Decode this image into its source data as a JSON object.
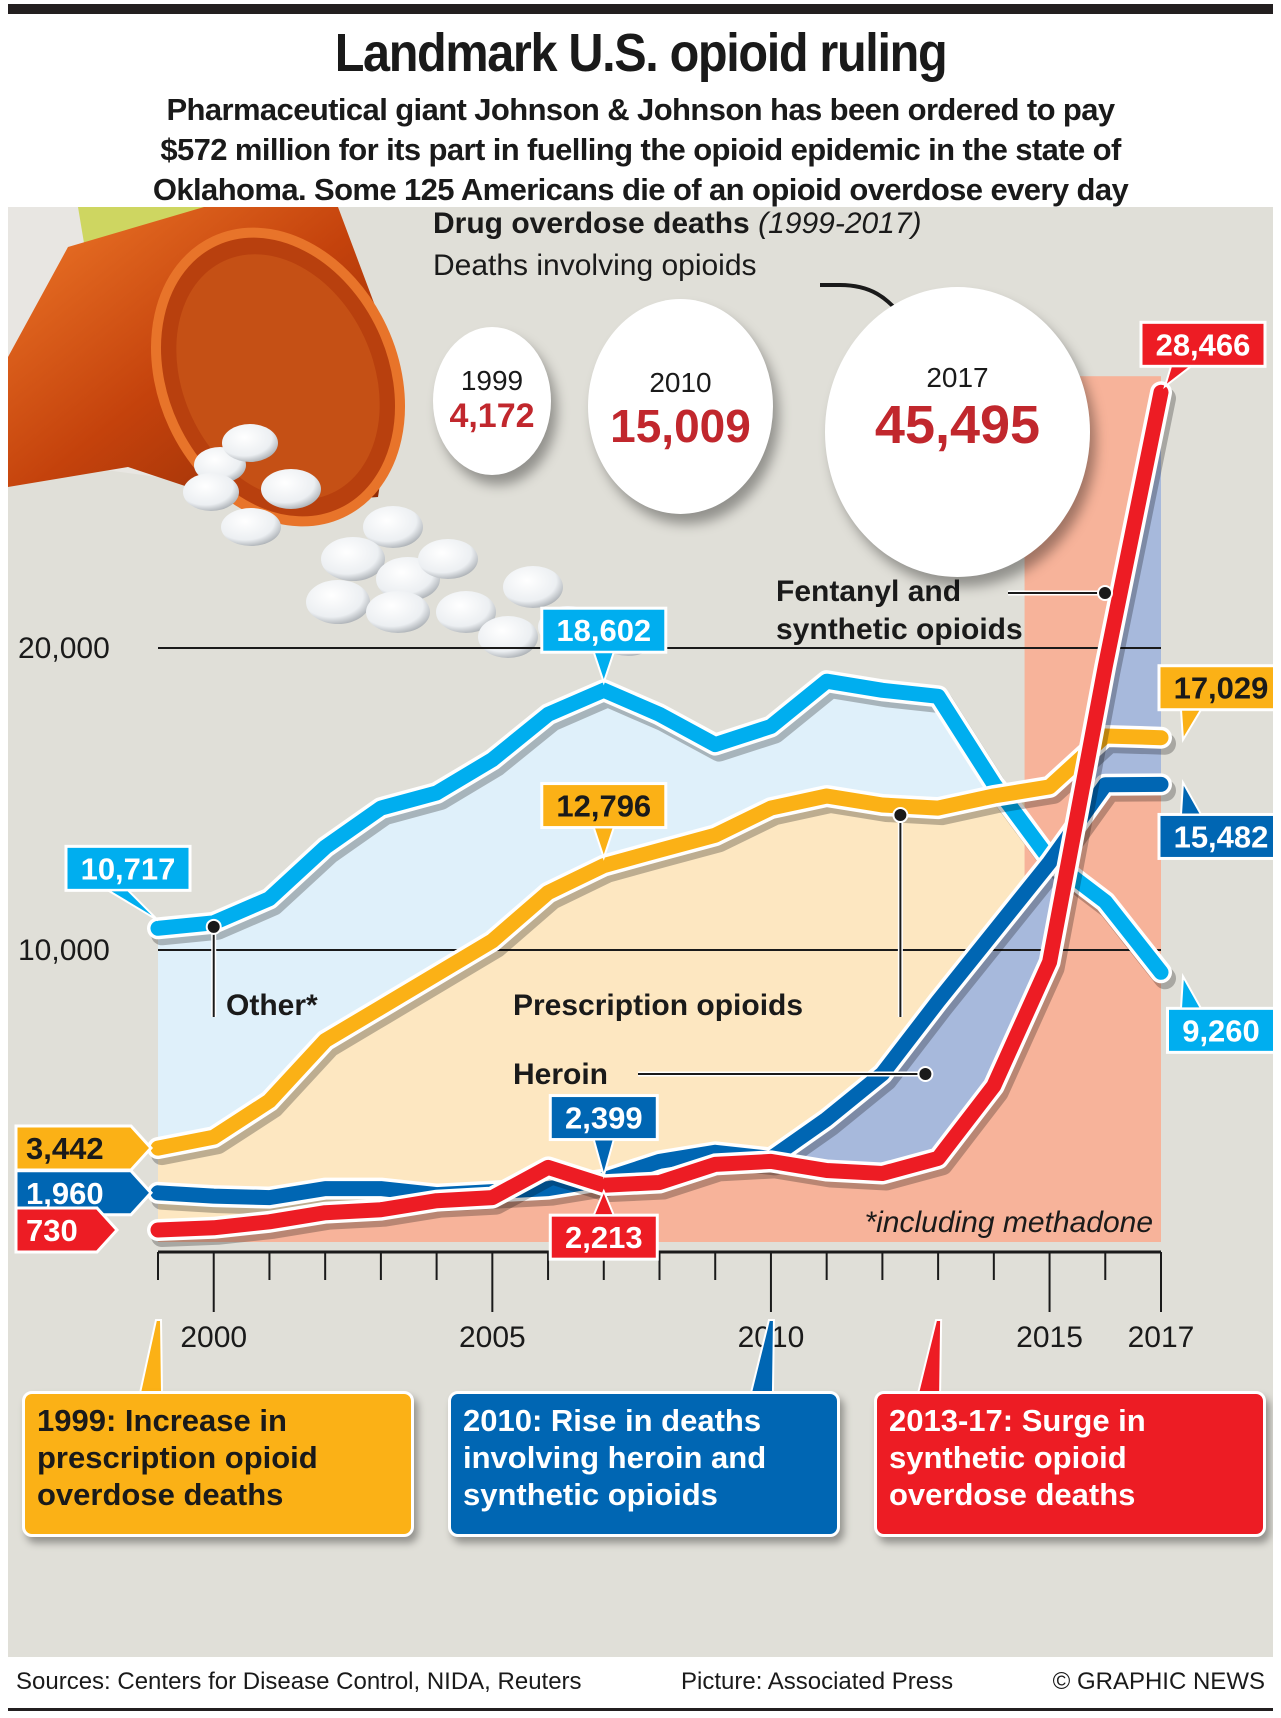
{
  "header": {
    "title": "Landmark U.S. opioid ruling",
    "subtitle_lines": [
      "Pharmaceutical giant Johnson & Johnson has been ordered to pay",
      "$572 million for its part in fuelling the opioid epidemic in the state of",
      "Oklahoma. Some 125 Americans die of an opioid overdose every day"
    ]
  },
  "summary": {
    "heading": "Drug overdose deaths",
    "heading_period": "(1999-2017)",
    "subheading": "Deaths involving opioids",
    "circles": [
      {
        "year": "1999",
        "value": "4,172"
      },
      {
        "year": "2010",
        "value": "15,009"
      },
      {
        "year": "2017",
        "value": "45,495"
      }
    ]
  },
  "colors": {
    "other": "#00aeef",
    "prescription": "#fbb116",
    "heroin": "#0066b3",
    "synthetic": "#ed1c24",
    "other_fill": "#dff0fa",
    "prescription_fill": "#fde7c1",
    "heroin_fill": "#a7b9dc",
    "synthetic_fill": "#f7b39a",
    "panel": "#e0dfd8",
    "circle_value": "#c1272d"
  },
  "chart_data": {
    "type": "line",
    "title": "Drug overdose deaths (1999-2017)",
    "xlabel": "",
    "ylabel": "",
    "x": [
      1999,
      2000,
      2001,
      2002,
      2003,
      2004,
      2005,
      2006,
      2007,
      2008,
      2009,
      2010,
      2011,
      2012,
      2013,
      2014,
      2015,
      2016,
      2017
    ],
    "xticks": [
      2000,
      2005,
      2010,
      2015,
      2017
    ],
    "yticks": [
      {
        "value": 10000,
        "label": "10,000"
      },
      {
        "value": 20000,
        "label": "20,000"
      }
    ],
    "ylim": [
      0,
      30000
    ],
    "grid": true,
    "series": [
      {
        "key": "other",
        "name": "Other*",
        "values": [
          10717,
          10900,
          11700,
          13400,
          14700,
          15200,
          16300,
          17800,
          18602,
          17800,
          16800,
          17400,
          18900,
          18600,
          18400,
          15500,
          13000,
          11600,
          9260
        ]
      },
      {
        "key": "prescription",
        "name": "Prescription opioids",
        "values": [
          3442,
          3800,
          5000,
          7000,
          8100,
          9200,
          10300,
          11900,
          12796,
          13300,
          13800,
          14700,
          15100,
          14800,
          14700,
          15100,
          15400,
          17087,
          17029
        ]
      },
      {
        "key": "heroin",
        "name": "Heroin",
        "values": [
          1960,
          1850,
          1800,
          2100,
          2100,
          1900,
          2000,
          2100,
          2399,
          3000,
          3300,
          3100,
          4400,
          5900,
          8300,
          10600,
          12900,
          15469,
          15482
        ]
      },
      {
        "key": "synthetic",
        "name": "Fentanyl and synthetic opioids",
        "values": [
          730,
          800,
          1000,
          1300,
          1400,
          1700,
          1800,
          2800,
          2213,
          2300,
          2900,
          3000,
          2700,
          2600,
          3100,
          5500,
          9600,
          19400,
          28466
        ]
      }
    ],
    "data_labels": [
      {
        "series": "other",
        "year": 1999,
        "text": "10,717"
      },
      {
        "series": "other",
        "year": 2007,
        "text": "18,602"
      },
      {
        "series": "other",
        "year": 2017,
        "text": "9,260"
      },
      {
        "series": "prescription",
        "year": 1999,
        "text": "3,442"
      },
      {
        "series": "prescription",
        "year": 2007,
        "text": "12,796"
      },
      {
        "series": "prescription",
        "year": 2017,
        "text": "17,029"
      },
      {
        "series": "heroin",
        "year": 1999,
        "text": "1,960"
      },
      {
        "series": "heroin",
        "year": 2007,
        "text": "2,399"
      },
      {
        "series": "heroin",
        "year": 2017,
        "text": "15,482"
      },
      {
        "series": "synthetic",
        "year": 1999,
        "text": "730"
      },
      {
        "series": "synthetic",
        "year": 2007,
        "text": "2,213"
      },
      {
        "series": "synthetic",
        "year": 2017,
        "text": "28,466"
      }
    ],
    "annotations": {
      "other": "Other*",
      "prescription": "Prescription opioids",
      "heroin": "Heroin",
      "synthetic_line1": "Fentanyl and",
      "synthetic_line2": "synthetic opioids",
      "footnote": "*including methadone"
    }
  },
  "callouts": [
    {
      "key": "prescription",
      "lines": [
        "1999: Increase in",
        "prescription opioid",
        "overdose deaths"
      ]
    },
    {
      "key": "heroin",
      "lines": [
        "2010: Rise in deaths",
        "involving heroin and",
        "synthetic opioids"
      ]
    },
    {
      "key": "synthetic",
      "lines": [
        "2013-17: Surge in",
        "synthetic opioid",
        "overdose deaths"
      ]
    }
  ],
  "footer": {
    "sources": "Sources: Centers for Disease Control, NIDA, Reuters",
    "picture": "Picture: Associated Press",
    "credit": "© GRAPHIC NEWS"
  }
}
